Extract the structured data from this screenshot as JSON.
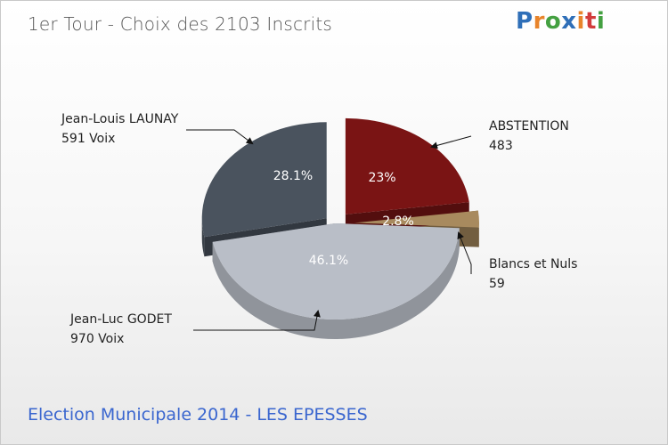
{
  "title": "1er Tour - Choix des 2103 Inscrits",
  "footer": "Election Municipale 2014 - LES EPESSES",
  "logo_letters": [
    "P",
    "r",
    "o",
    "x",
    "i",
    "t",
    "i"
  ],
  "chart_data": {
    "type": "pie",
    "title": "1er Tour - Choix des 2103 Inscrits",
    "total": 2103,
    "slices": [
      {
        "name": "ABSTENTION",
        "value_label": "483",
        "value": 483,
        "percent_label": "23%",
        "color": "#7a1414"
      },
      {
        "name": "Blancs et Nuls",
        "value_label": "59",
        "value": 59,
        "percent_label": "2.8%",
        "color": "#a88a5e"
      },
      {
        "name": "Jean-Luc GODET",
        "value_label": "970 Voix",
        "value": 970,
        "percent_label": "46.1%",
        "color": "#b9bec7"
      },
      {
        "name": "Jean-Louis LAUNAY",
        "value_label": "591 Voix",
        "value": 591,
        "percent_label": "28.1%",
        "color": "#4a535e"
      }
    ]
  }
}
